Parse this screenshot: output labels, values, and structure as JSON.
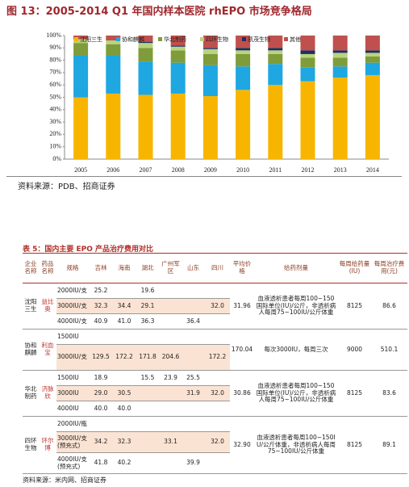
{
  "figure": {
    "title": "图 13：2005-2014 Q1 年国内样本医院 rhEPO 市场竞争格局",
    "source": "资料来源：PDB、招商证券"
  },
  "chart_data": {
    "type": "stacked_bar",
    "categories": [
      "2005",
      "2006",
      "2007",
      "2008",
      "2009",
      "2010",
      "2011",
      "2012",
      "2013",
      "2014"
    ],
    "series": [
      {
        "name": "沈阳三生",
        "color": "#f7b500",
        "values": [
          50,
          53,
          52,
          53,
          51,
          56,
          60,
          63,
          66,
          68
        ]
      },
      {
        "name": "协和麒麟",
        "color": "#1ea7e0",
        "values": [
          34,
          31,
          27,
          25,
          25,
          19,
          17,
          11,
          9,
          10
        ]
      },
      {
        "name": "华北制药",
        "color": "#7f9c3a",
        "values": [
          10,
          9,
          11,
          10,
          9,
          10,
          8,
          8,
          7,
          5
        ]
      },
      {
        "name": "四环生物",
        "color": "#b9d37e",
        "values": [
          3,
          3,
          4,
          3,
          4,
          3,
          3,
          3,
          4,
          3
        ]
      },
      {
        "name": "凯茂生物",
        "color": "#1f3060",
        "values": [
          0,
          0,
          1,
          1,
          1,
          2,
          2,
          3,
          2,
          2
        ]
      },
      {
        "name": "其他",
        "color": "#c0504d",
        "values": [
          3,
          4,
          5,
          8,
          10,
          10,
          10,
          12,
          12,
          12
        ]
      }
    ],
    "ylim": [
      0,
      100
    ],
    "yticks": [
      {
        "value": 0,
        "label": "0%"
      },
      {
        "value": 10,
        "label": "10%"
      },
      {
        "value": 20,
        "label": "20%"
      },
      {
        "value": 30,
        "label": "30%"
      },
      {
        "value": 40,
        "label": "40%"
      },
      {
        "value": 50,
        "label": "50%"
      },
      {
        "value": 60,
        "label": "60%"
      },
      {
        "value": 70,
        "label": "70%"
      },
      {
        "value": 80,
        "label": "80%"
      },
      {
        "value": 90,
        "label": "90%"
      },
      {
        "value": 100,
        "label": "100%"
      }
    ],
    "legend": "top"
  },
  "table": {
    "title": "表 5：国内主要 EPO 产品治疗费用对比",
    "header": [
      "企业名称",
      "药品名称",
      "规格",
      "吉林",
      "海南",
      "湖北",
      "广州军区",
      "山东",
      "四川",
      "平均价格",
      "给药剂量",
      "每周给药量(IU)",
      "每周治疗费用(元)"
    ],
    "groups": [
      {
        "company": "沈阳三生",
        "drug": "益比奥",
        "avg": "31.96",
        "dose": "血液透析患者每周100~150国际单位(IU)/公斤，非透析病人每周75~100IU/公斤体重",
        "weekly_dose": "8125",
        "weekly_cost": "86.6",
        "rows": [
          {
            "spec": "2000IU/支",
            "prices": [
              "25.2",
              null,
              "19.6",
              null,
              null,
              null
            ]
          },
          {
            "spec": "3000IU/支",
            "prices": [
              "32.3",
              "34.4",
              "29.1",
              null,
              null,
              "32.0"
            ]
          },
          {
            "spec": "4000IU/支",
            "prices": [
              "40.9",
              "41.0",
              "36.3",
              null,
              "36.4",
              null
            ]
          }
        ]
      },
      {
        "company": "协和麒麟",
        "drug": "利血宝",
        "avg": "170.04",
        "dose": "每次3000IU，每周三次",
        "weekly_dose": "9000",
        "weekly_cost": "510.1",
        "rows": [
          {
            "spec": "1500IU",
            "prices": [
              null,
              null,
              null,
              null,
              null,
              null
            ]
          },
          {
            "spec": "3000IU/支",
            "prices": [
              "129.5",
              "172.2",
              "171.8",
              "204.6",
              null,
              "172.2"
            ]
          }
        ]
      },
      {
        "company": "华北制药",
        "drug": "济脉欣",
        "avg": "30.86",
        "dose": "血液透析患者每周100~150国际单位(IU)/公斤，非透析病人每周75~100IU/公斤体重",
        "weekly_dose": "8125",
        "weekly_cost": "83.6",
        "rows": [
          {
            "spec": "1500IU",
            "prices": [
              "18.9",
              null,
              "15.5",
              "23.9",
              "25.5",
              null
            ]
          },
          {
            "spec": "3000IU",
            "prices": [
              "29.0",
              "30.5",
              null,
              null,
              "31.9",
              "32.0"
            ]
          },
          {
            "spec": "4000IU",
            "prices": [
              "40.0",
              "40.0",
              null,
              null,
              null,
              null
            ]
          }
        ]
      },
      {
        "company": "四环生物",
        "drug": "环尔博",
        "avg": "32.90",
        "dose": "血液透析患者每周100~150IU/公斤体重，非透析病人每周75~100IU/公斤体重",
        "weekly_dose": "8125",
        "weekly_cost": "89.1",
        "rows": [
          {
            "spec": "2000IU/瓶",
            "prices": [
              null,
              null,
              null,
              null,
              null,
              null
            ]
          },
          {
            "spec": "3000IU/支(预充式)",
            "prices": [
              "34.2",
              "32.3",
              null,
              "33.1",
              null,
              "32.0"
            ]
          },
          {
            "spec": "4000IU/支(预充式)",
            "prices": [
              "41.8",
              "40.2",
              null,
              null,
              "39.9",
              null
            ]
          }
        ]
      }
    ],
    "source": "资料来源：米内网、招商证券"
  }
}
